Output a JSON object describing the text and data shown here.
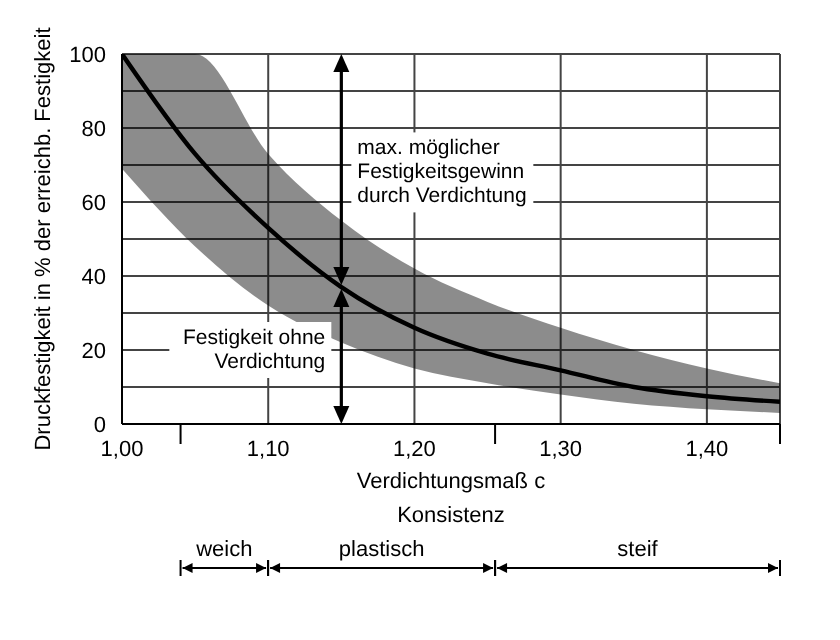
{
  "chart_data": {
    "type": "line",
    "xlabel": "Verdichtungsmaß c",
    "ylabel": "Druckfestigkeit in % der erreichb. Festigkeit",
    "x": [
      1.0,
      1.05,
      1.1,
      1.15,
      1.2,
      1.25,
      1.3,
      1.35,
      1.4,
      1.45
    ],
    "series": [
      {
        "color": "#000000",
        "values": [
          100,
          73,
          53,
          37,
          26,
          19,
          14.5,
          10,
          7.5,
          6
        ],
        "lower": [
          69,
          48,
          32,
          22,
          15,
          11,
          8,
          5.5,
          4,
          3
        ],
        "upper": [
          100,
          100,
          73,
          55,
          42,
          33,
          26,
          20,
          15,
          11
        ]
      }
    ],
    "xlim": [
      1.0,
      1.45
    ],
    "xticks": [
      {
        "value": 1.0,
        "label": "1,00"
      },
      {
        "value": 1.1,
        "label": "1,10"
      },
      {
        "value": 1.2,
        "label": "1,20"
      },
      {
        "value": 1.3,
        "label": "1,30"
      },
      {
        "value": 1.4,
        "label": "1,40"
      },
      {
        "value": 1.45,
        "label": null
      }
    ],
    "ylim": [
      0,
      100
    ],
    "yticks": [
      0,
      {
        "value": 10,
        "label": null
      },
      20,
      {
        "value": 30,
        "label": null
      },
      40,
      {
        "value": 50,
        "label": null
      },
      60,
      {
        "value": 70,
        "label": null
      },
      80,
      {
        "value": 90,
        "label": null
      },
      100
    ],
    "grid": true,
    "marker": "none",
    "line_style": "solid",
    "annotations": [
      "max. möglicher\nFestigkeitsgewinn\ndurch Verdichtung",
      "Festigkeit ohne\nVerdichtung",
      "Konsistenz",
      "weich",
      "plastisch",
      "steif"
    ],
    "ref_lines": [
      {
        "axis": "x",
        "value": 1.15,
        "label": null
      }
    ]
  }
}
